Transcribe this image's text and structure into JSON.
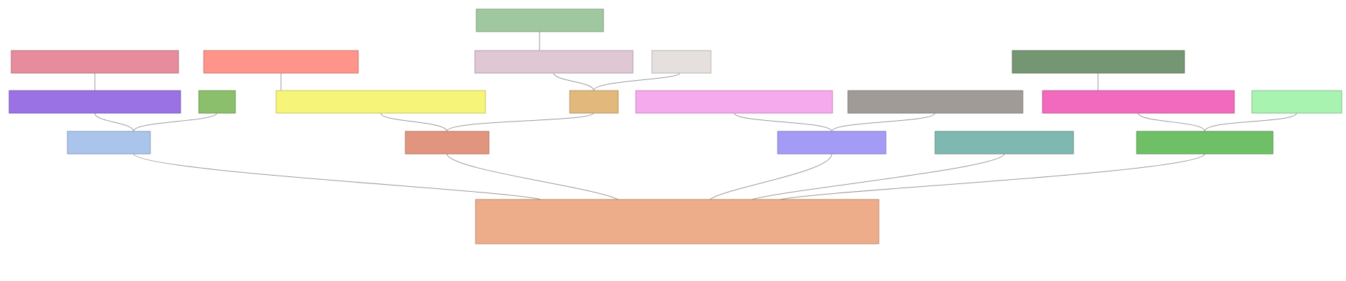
{
  "nodes": {
    "n0": {
      "color": "#a0c8a0"
    },
    "n1": {
      "color": "#e68c9c"
    },
    "n2": {
      "color": "#ff948a"
    },
    "n3": {
      "color": "#dfc7d4"
    },
    "n4": {
      "color": "#e5e0de"
    },
    "n5": {
      "color": "#749673"
    },
    "n6": {
      "color": "#9b72e3"
    },
    "n7": {
      "color": "#8bbf6b"
    },
    "n8": {
      "color": "#f6f57a"
    },
    "n9": {
      "color": "#e2b87c"
    },
    "n10": {
      "color": "#f6aaee"
    },
    "n11": {
      "color": "#a09b97"
    },
    "n12": {
      "color": "#f16abd"
    },
    "n13": {
      "color": "#a8f3b0"
    },
    "n14": {
      "color": "#aac4ec"
    },
    "n15": {
      "color": "#e1957e"
    },
    "n16": {
      "color": "#a39bf4"
    },
    "n17": {
      "color": "#7fb8b0"
    },
    "n18": {
      "color": "#6fbf67"
    },
    "n19": {
      "color": "#edad8a"
    }
  },
  "edges": [
    [
      "n0",
      "n3"
    ],
    [
      "n1",
      "n6"
    ],
    [
      "n2",
      "n8"
    ],
    [
      "n5",
      "n12"
    ],
    [
      "n3",
      "n9"
    ],
    [
      "n4",
      "n9"
    ],
    [
      "n6",
      "n14"
    ],
    [
      "n7",
      "n14"
    ],
    [
      "n8",
      "n15"
    ],
    [
      "n9",
      "n15"
    ],
    [
      "n10",
      "n16"
    ],
    [
      "n11",
      "n16"
    ],
    [
      "n12",
      "n18"
    ],
    [
      "n13",
      "n18"
    ],
    [
      "n14",
      "n19"
    ],
    [
      "n15",
      "n19"
    ],
    [
      "n16",
      "n19"
    ],
    [
      "n17",
      "n19"
    ],
    [
      "n18",
      "n19"
    ]
  ]
}
